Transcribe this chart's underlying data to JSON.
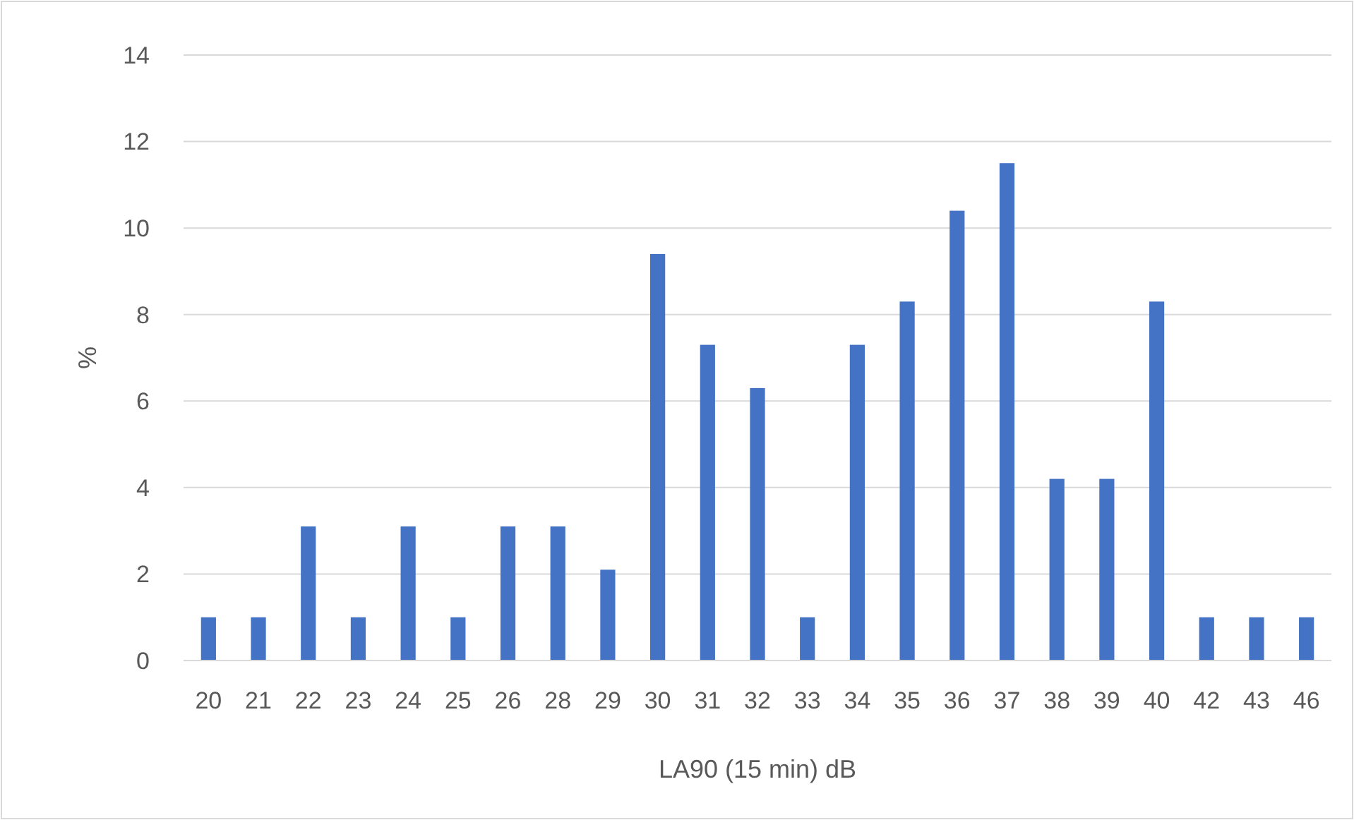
{
  "chart_data": {
    "type": "bar",
    "xlabel": "LA90 (15 min) dB",
    "ylabel": "%",
    "categories": [
      "20",
      "21",
      "22",
      "23",
      "24",
      "25",
      "26",
      "28",
      "29",
      "30",
      "31",
      "32",
      "33",
      "34",
      "35",
      "36",
      "37",
      "38",
      "39",
      "40",
      "42",
      "43",
      "46"
    ],
    "values": [
      1.0,
      1.0,
      3.1,
      1.0,
      3.1,
      1.0,
      3.1,
      3.1,
      2.1,
      9.4,
      7.3,
      6.3,
      1.0,
      7.3,
      8.3,
      10.4,
      11.5,
      4.2,
      4.2,
      8.3,
      1.0,
      1.0,
      1.0
    ],
    "color": "#4472c4",
    "ylim": [
      0,
      14
    ],
    "yticks": [
      0,
      2,
      4,
      6,
      8,
      10,
      12,
      14
    ],
    "grid": "y"
  }
}
